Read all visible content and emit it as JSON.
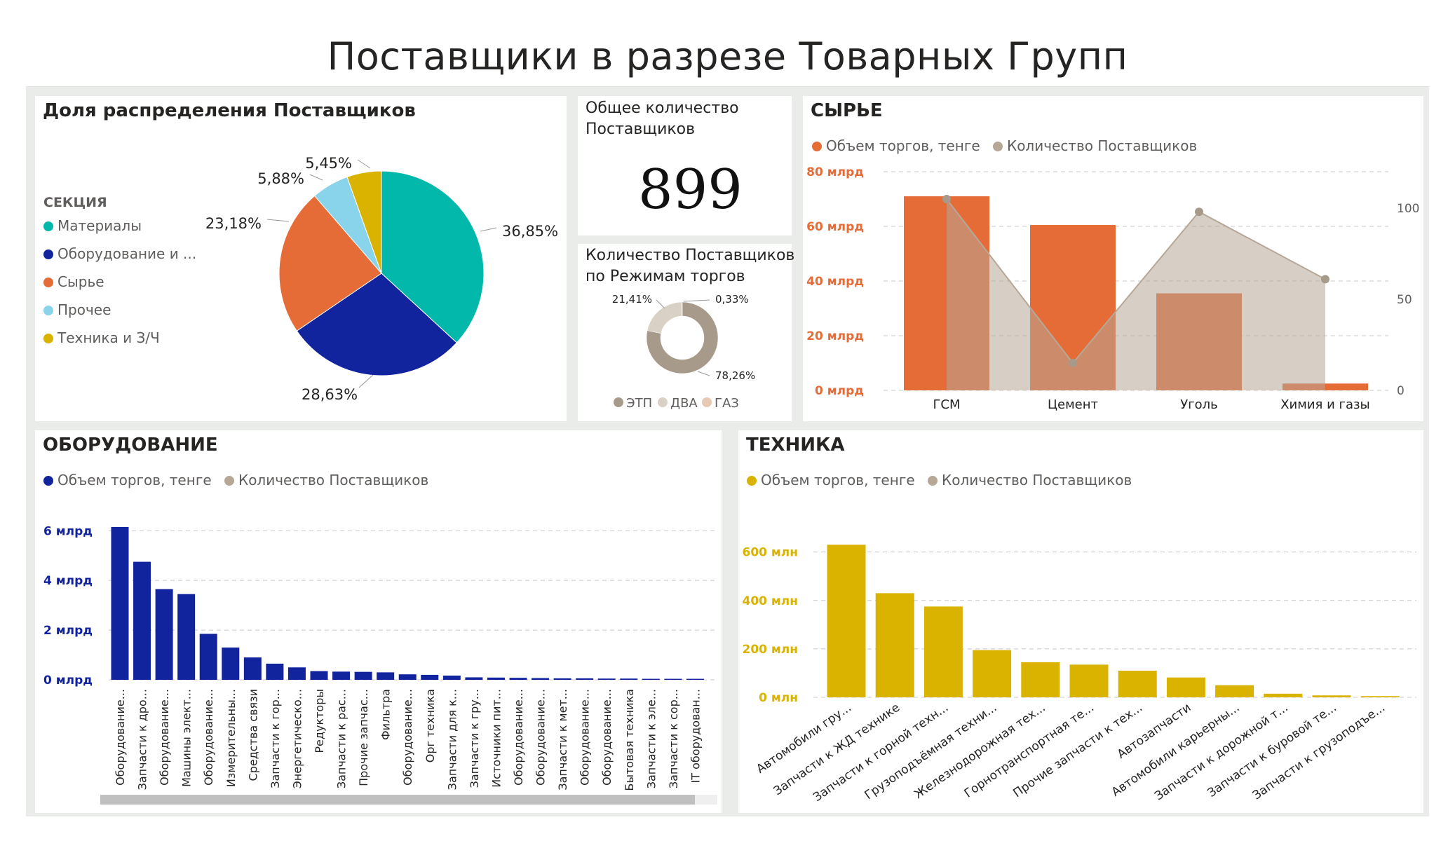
{
  "page_title": "Поставщики в разрезе Товарных Групп",
  "panels": {
    "share": "Доля распределения Поставщиков",
    "total": "Общее количество Поставщиков",
    "modes": "Количество Поставщиков по Режимам торгов",
    "raw": "СЫРЬЕ",
    "equip": "ОБОРУДОВАНИЕ",
    "tech": "ТЕХНИКА"
  },
  "kpi": {
    "total_suppliers": "899"
  },
  "legend_labels": {
    "volume": "Объем торгов, тенге",
    "count": "Количество Поставщиков"
  },
  "colors": {
    "teal": "#01b8aa",
    "navy": "#12239e",
    "orange": "#e66c37",
    "lightblue": "#8ad4eb",
    "gold": "#d9b300",
    "taupe": "#b7a797"
  },
  "chart_data": [
    {
      "type": "pie",
      "legend_title": "СЕКЦИЯ",
      "categories": [
        "Материалы",
        "Оборудование и ...",
        "Сырье",
        "Прочее",
        "Техника и З/Ч"
      ],
      "values": [
        36.85,
        28.63,
        23.18,
        5.88,
        5.45
      ],
      "labels": [
        "36,85%",
        "28,63%",
        "23,18%",
        "5,88%",
        "5,45%"
      ],
      "colors": [
        "#01b8aa",
        "#12239e",
        "#e66c37",
        "#8ad4eb",
        "#d9b300"
      ]
    },
    {
      "type": "pie",
      "donut": true,
      "categories": [
        "ЭТП",
        "ДВА",
        "ГАЗ"
      ],
      "values": [
        78.26,
        21.41,
        0.33
      ],
      "labels": [
        "78,26%",
        "21,41%",
        "0,33%"
      ],
      "colors": [
        "#a89a8a",
        "#d9d0c6",
        "#e8c9b4"
      ]
    },
    {
      "type": "bar",
      "categories": [
        "ГСМ",
        "Цемент",
        "Уголь",
        "Химия и газы"
      ],
      "series": [
        {
          "name": "Объем торгов, тенге",
          "values": [
            71,
            60.5,
            35.5,
            2.5
          ],
          "unit": "млрд"
        },
        {
          "name": "Количество Поставщиков",
          "values": [
            105,
            15,
            98,
            61
          ]
        }
      ],
      "y_ticks": [
        "0 млрд",
        "20 млрд",
        "40 млрд",
        "60 млрд",
        "80 млрд"
      ],
      "y2_ticks": [
        "0",
        "50",
        "100"
      ],
      "ylim": [
        0,
        80
      ],
      "y2lim": [
        0,
        120
      ]
    },
    {
      "type": "bar",
      "categories": [
        "Оборудование...",
        "Запчасти к дро...",
        "Оборудование...",
        "Машины элект...",
        "Оборудование...",
        "Измерительны...",
        "Средства связи",
        "Запчасти к гор...",
        "Энергетическо...",
        "Редукторы",
        "Запчасти к рас...",
        "Прочие запчас...",
        "Фильтра",
        "Оборудование...",
        "Орг техника",
        "Запчасти для к...",
        "Запчасти к гру...",
        "Источники пит...",
        "Оборудование...",
        "Оборудование...",
        "Запчасти к мет...",
        "Оборудование...",
        "Оборудование...",
        "Бытовая техника",
        "Запчасти к эле...",
        "Запчасти к сор...",
        "IT оборудован..."
      ],
      "series": [
        {
          "name": "Объем торгов, тенге",
          "values": [
            6.15,
            4.75,
            3.65,
            3.45,
            1.85,
            1.3,
            0.9,
            0.65,
            0.5,
            0.35,
            0.33,
            0.32,
            0.3,
            0.22,
            0.2,
            0.17,
            0.1,
            0.09,
            0.08,
            0.07,
            0.06,
            0.06,
            0.05,
            0.05,
            0.04,
            0.04,
            0.04
          ],
          "unit": "млрд"
        }
      ],
      "y_ticks": [
        "0 млрд",
        "2 млрд",
        "4 млрд",
        "6 млрд"
      ],
      "ylim": [
        0,
        6.6
      ]
    },
    {
      "type": "bar",
      "categories": [
        "Автомобили гру...",
        "Запчасти к ЖД технике",
        "Запчасти к горной техн...",
        "Грузоподъёмная техни...",
        "Железнодорожная тех...",
        "Горнотранспортная те...",
        "Прочие запчасти к тех...",
        "Автозапчасти",
        "Автомобили карьерны...",
        "Запчасти к дорожной т...",
        "Запчасти к буровой те...",
        "Запчасти к грузоподъе..."
      ],
      "series": [
        {
          "name": "Объем торгов, тенге",
          "values": [
            630,
            430,
            375,
            195,
            145,
            135,
            110,
            82,
            50,
            15,
            8,
            5
          ],
          "unit": "млн"
        }
      ],
      "y_ticks": [
        "0 млн",
        "200 млн",
        "400 млн",
        "600 млн"
      ],
      "ylim": [
        0,
        680
      ]
    }
  ]
}
